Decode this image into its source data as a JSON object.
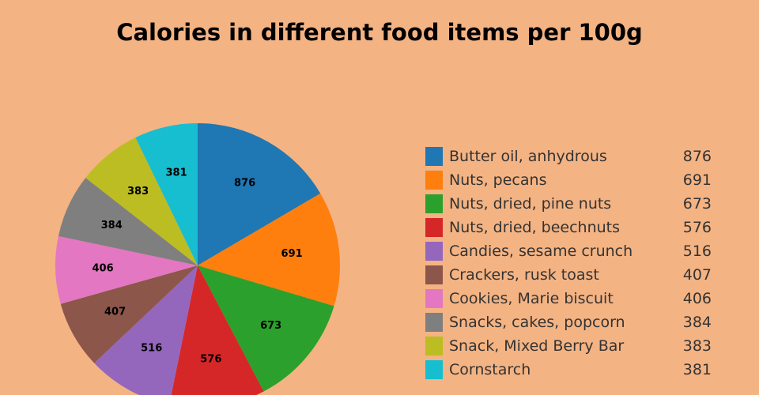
{
  "page": {
    "background": "#f4b383"
  },
  "chart_data": {
    "type": "pie",
    "title": "Calories in different food items per 100g",
    "categories": [
      "Butter oil, anhydrous",
      "Nuts, pecans",
      "Nuts, dried, pine nuts",
      "Nuts, dried, beechnuts",
      "Candies, sesame crunch",
      "Crackers, rusk toast",
      "Cookies, Marie biscuit",
      "Snacks, cakes, popcorn",
      "Snack, Mixed Berry Bar",
      "Cornstarch"
    ],
    "values": [
      876,
      691,
      673,
      576,
      516,
      407,
      406,
      384,
      383,
      381
    ],
    "slice_labels": [
      "876",
      "691",
      "673",
      "576",
      "516",
      "407",
      "406",
      "384",
      "383",
      "381"
    ],
    "legend_values": [
      "876",
      "691",
      "673",
      "576",
      "516",
      "407",
      "406",
      "384",
      "383",
      "381"
    ],
    "colors": [
      "#1f77b4",
      "#ff7f0e",
      "#2ca02c",
      "#d62728",
      "#9467bd",
      "#8c564b",
      "#e377c2",
      "#7f7f7f",
      "#bcbd22",
      "#17becf"
    ],
    "legend_position": "right",
    "start": "12 o'clock",
    "direction": "clockwise"
  }
}
